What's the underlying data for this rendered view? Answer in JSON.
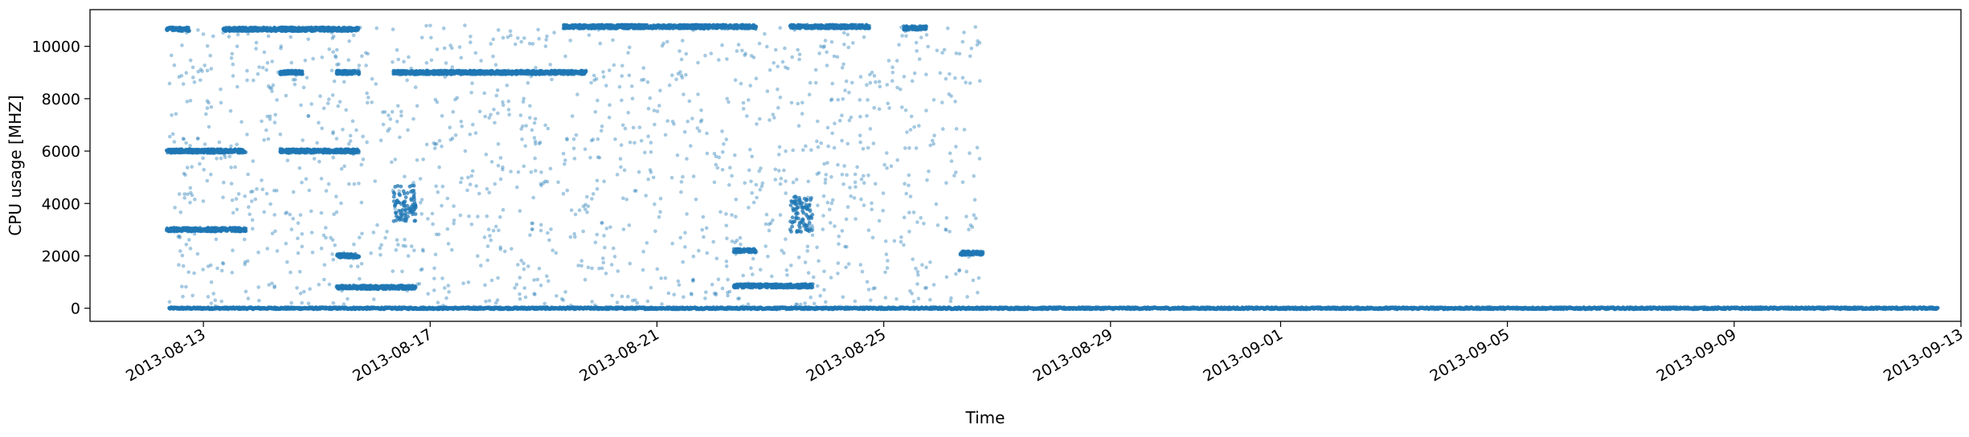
{
  "chart_data": {
    "type": "scatter",
    "xlabel": "Time",
    "ylabel": "CPU usage [MHZ]",
    "x_range": [
      "2013-08-11",
      "2013-09-13"
    ],
    "ylim": [
      -500,
      11400
    ],
    "x_ticks": [
      "2013-08-13",
      "2013-08-17",
      "2013-08-21",
      "2013-08-25",
      "2013-08-29",
      "2013-09-01",
      "2013-09-05",
      "2013-09-09",
      "2013-09-13"
    ],
    "y_ticks": [
      0,
      2000,
      4000,
      6000,
      8000,
      10000
    ],
    "grid": false,
    "legend": "none",
    "marker_color": "#1f77b4",
    "data_start": "2013-08-12",
    "data_end": "2013-09-12",
    "clusters": [
      {
        "x": [
          "2013-08-12",
          "2013-08-12"
        ],
        "y": 10650
      },
      {
        "x": [
          "2013-08-12",
          "2013-08-13"
        ],
        "y": 6000
      },
      {
        "x": [
          "2013-08-12",
          "2013-08-13"
        ],
        "y": 3000
      },
      {
        "x": [
          "2013-08-13",
          "2013-08-14"
        ],
        "y": 10650
      },
      {
        "x": [
          "2013-08-14",
          "2013-08-15"
        ],
        "y": 10650
      },
      {
        "x": [
          "2013-08-14",
          "2013-08-14"
        ],
        "y": 9000
      },
      {
        "x": [
          "2013-08-15",
          "2013-08-15"
        ],
        "y": 9000
      },
      {
        "x": [
          "2013-08-14",
          "2013-08-15"
        ],
        "y": 6000
      },
      {
        "x": [
          "2013-08-15",
          "2013-08-15"
        ],
        "y": 2000
      },
      {
        "x": [
          "2013-08-15",
          "2013-08-16"
        ],
        "y": 800
      },
      {
        "x": [
          "2013-08-16",
          "2013-08-16"
        ],
        "y": 4000
      },
      {
        "x": [
          "2013-08-16",
          "2013-08-19"
        ],
        "y": 9000
      },
      {
        "x": [
          "2013-08-19",
          "2013-08-20"
        ],
        "y": 10750
      },
      {
        "x": [
          "2013-08-20",
          "2013-08-21"
        ],
        "y": 10750
      },
      {
        "x": [
          "2013-08-21",
          "2013-08-22"
        ],
        "y": 10750
      },
      {
        "x": [
          "2013-08-22",
          "2013-08-22"
        ],
        "y": 2200
      },
      {
        "x": [
          "2013-08-22",
          "2013-08-23"
        ],
        "y": 850
      },
      {
        "x": [
          "2013-08-23",
          "2013-08-23"
        ],
        "y": 3600
      },
      {
        "x": [
          "2013-08-23",
          "2013-08-24"
        ],
        "y": 10750
      },
      {
        "x": [
          "2013-08-25",
          "2013-08-25"
        ],
        "y": 10700
      },
      {
        "x": [
          "2013-08-26",
          "2013-08-26"
        ],
        "y": 2100
      }
    ],
    "baseline": {
      "x": [
        "2013-08-12",
        "2013-09-12"
      ],
      "y": 0
    }
  }
}
